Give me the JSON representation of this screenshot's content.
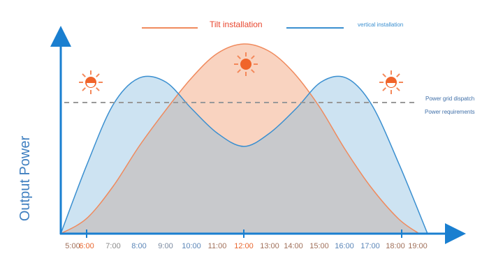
{
  "chart_data": {
    "type": "area",
    "ylabel": "Output Power",
    "xlabel": "",
    "x": [
      "5:00",
      "6:00",
      "7:00",
      "8:00",
      "9:00",
      "10:00",
      "11:00",
      "12:00",
      "13:00",
      "14:00",
      "15:00",
      "16:00",
      "17:00",
      "18:00",
      "19:00"
    ],
    "tick_colors": [
      "#a0705a",
      "#e8662e",
      "#8a8a8a",
      "#5b86b8",
      "#7a8aa0",
      "#5b86b8",
      "#a0705a",
      "#e8662e",
      "#a0705a",
      "#a0705a",
      "#a0705a",
      "#5b86b8",
      "#5b86b8",
      "#a0705a",
      "#a0705a"
    ],
    "series": [
      {
        "name": "Tilt installation",
        "color": "#f08a5d",
        "fill": "#f9d3c0",
        "values": [
          0,
          8,
          25,
          46,
          65,
          82,
          95,
          100,
          96,
          85,
          67,
          45,
          25,
          8,
          0
        ]
      },
      {
        "name": "vertical installation",
        "color": "#3a8fd0",
        "fill": "#cde3f2",
        "values": [
          0,
          36,
          68,
          82,
          80,
          66,
          53,
          46,
          53,
          66,
          80,
          82,
          68,
          36,
          0
        ]
      }
    ],
    "overlap_fill": "#c8c9cc",
    "reference_lines": [
      {
        "label": "Power grid dispatch",
        "style": "dashed",
        "color": "#999999",
        "level": 69
      },
      {
        "label": "Power requirements"
      }
    ],
    "legend": "top",
    "grid": false,
    "axis_color": "#1a7fd0",
    "icons": [
      "sun-rising-icon",
      "sun-icon",
      "sun-setting-icon"
    ]
  }
}
